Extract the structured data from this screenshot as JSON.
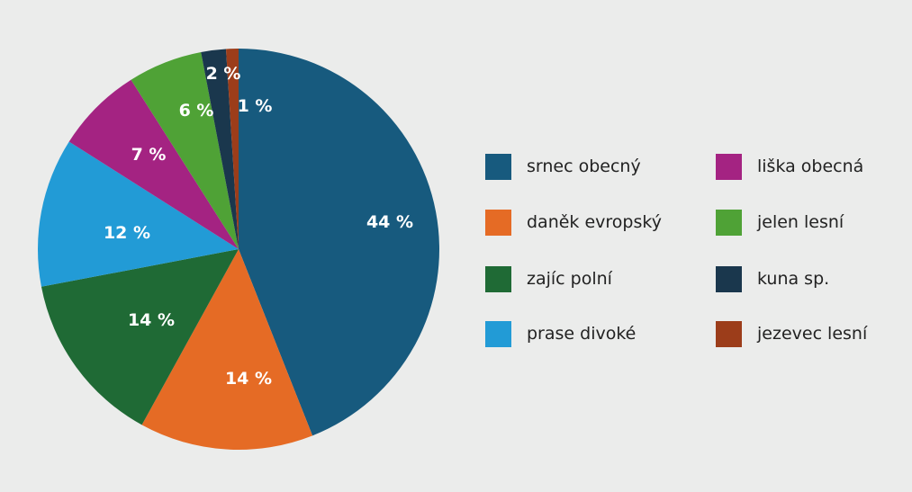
{
  "chart_data": {
    "type": "pie",
    "title": "",
    "slices": [
      {
        "label": "srnec obecný",
        "value": 44,
        "value_label": "44 %",
        "color": "#175a7e"
      },
      {
        "label": "daněk evropský",
        "value": 14,
        "value_label": "14 %",
        "color": "#e56b25"
      },
      {
        "label": "zajíc polní",
        "value": 14,
        "value_label": "14 %",
        "color": "#1f6a35"
      },
      {
        "label": "prase divoké",
        "value": 12,
        "value_label": "12 %",
        "color": "#229bd6"
      },
      {
        "label": "liška obecná",
        "value": 7,
        "value_label": "7 %",
        "color": "#a42382"
      },
      {
        "label": "jelen lesní",
        "value": 6,
        "value_label": "6 %",
        "color": "#4fa236"
      },
      {
        "label": "kuna sp.",
        "value": 2,
        "value_label": "2 %",
        "color": "#1a374d"
      },
      {
        "label": "jezevec lesní",
        "value": 1,
        "value_label": "1 %",
        "color": "#9c3d1a"
      }
    ],
    "start": "top",
    "direction": "clockwise",
    "legend_position": "right"
  }
}
